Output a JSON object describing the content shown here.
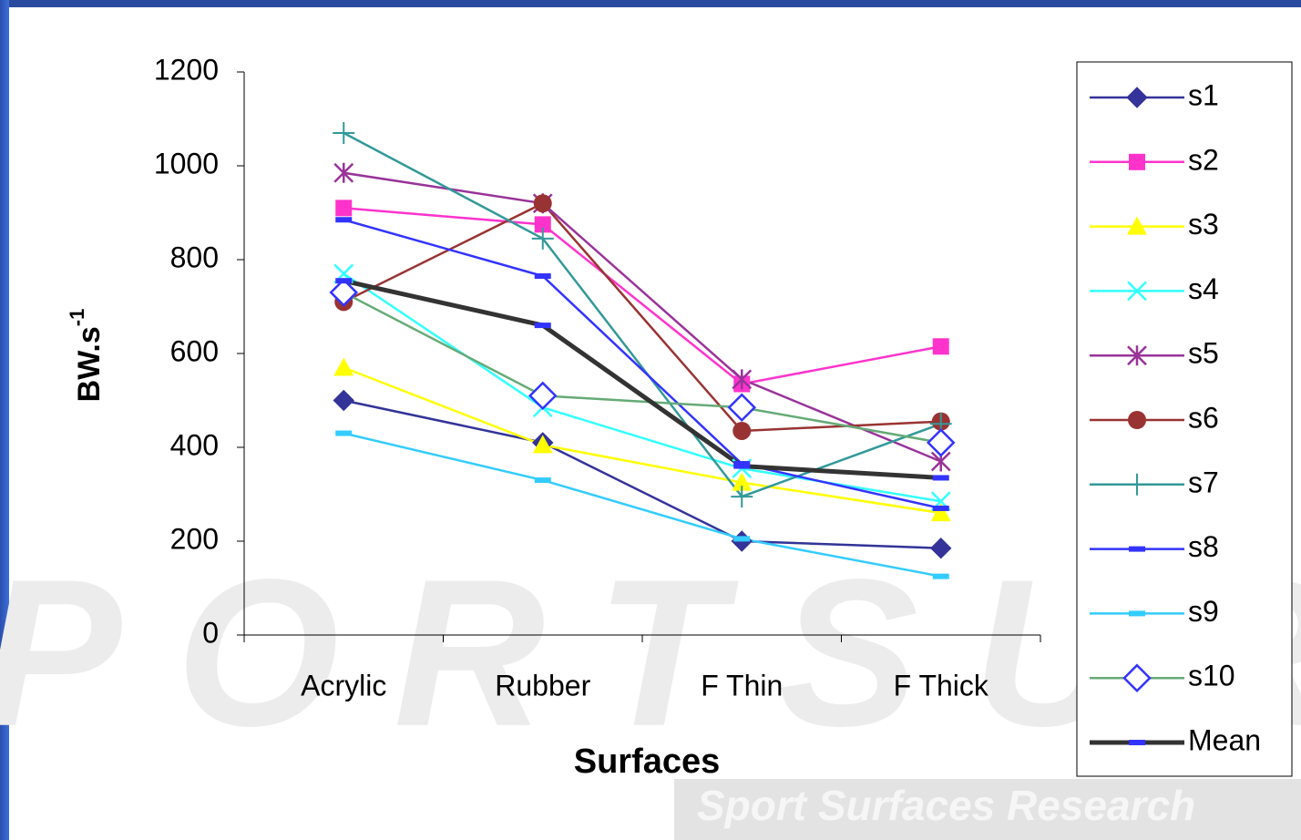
{
  "chart_data": {
    "type": "line",
    "x_label": "Surfaces",
    "y_label": "BW.s",
    "y_label_superscript": "-1",
    "categories": [
      "Acrylic",
      "Rubber",
      "F Thin",
      "F Thick"
    ],
    "ylim": [
      0,
      1200
    ],
    "yticks": [
      0,
      200,
      400,
      600,
      800,
      1000,
      1200
    ],
    "legend": "right",
    "watermark": [
      "PORTSUR",
      "Sport Surfaces Research"
    ],
    "series": [
      {
        "name": "s1",
        "color": "#333399",
        "line_color": "#333399",
        "marker": "diamond",
        "values": [
          500,
          410,
          200,
          185
        ]
      },
      {
        "name": "s2",
        "color": "#ff33cc",
        "line_color": "#ff33cc",
        "marker": "square",
        "values": [
          910,
          875,
          535,
          615
        ]
      },
      {
        "name": "s3",
        "color": "#ffff00",
        "line_color": "#ffff00",
        "marker": "triangle",
        "values": [
          570,
          405,
          325,
          260
        ]
      },
      {
        "name": "s4",
        "color": "#33ffff",
        "line_color": "#33ffff",
        "marker": "x",
        "values": [
          770,
          485,
          355,
          285
        ]
      },
      {
        "name": "s5",
        "color": "#993399",
        "line_color": "#993399",
        "marker": "star",
        "values": [
          985,
          920,
          545,
          370
        ]
      },
      {
        "name": "s6",
        "color": "#993333",
        "line_color": "#993333",
        "marker": "circle",
        "values": [
          710,
          920,
          435,
          455
        ]
      },
      {
        "name": "s7",
        "color": "#339999",
        "line_color": "#339999",
        "marker": "plus",
        "values": [
          1070,
          845,
          295,
          450
        ]
      },
      {
        "name": "s8",
        "color": "#3333ff",
        "line_color": "#3333ff",
        "marker": "dash",
        "values": [
          885,
          765,
          365,
          270
        ]
      },
      {
        "name": "s9",
        "color": "#33ccff",
        "line_color": "#33ccff",
        "marker": "dash",
        "values": [
          430,
          330,
          205,
          125
        ]
      },
      {
        "name": "s10",
        "color": "#3333ff",
        "line_color": "#66aa77",
        "marker": "hollow-diamond",
        "values": [
          730,
          510,
          485,
          410
        ]
      },
      {
        "name": "Mean",
        "color": "#3333ff",
        "line_color": "#333333",
        "marker": "dash",
        "width": 5,
        "values": [
          755,
          660,
          360,
          335
        ]
      }
    ]
  }
}
